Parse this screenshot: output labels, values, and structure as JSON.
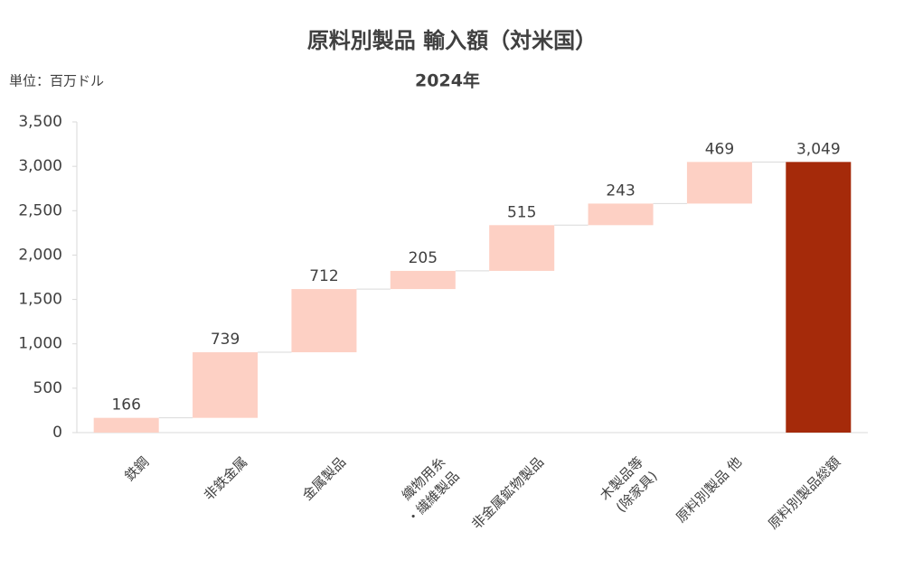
{
  "chart_data": {
    "type": "waterfall",
    "title": "原料別製品 輸入額（対米国）",
    "subtitle": "2024年",
    "unit_note": "単位：百万ドル",
    "categories": [
      "鉄鋼",
      "非鉄金属",
      "金属製品",
      "織物用糸\n・繊維製品",
      "非金属鉱物製品",
      "木製品等\n(除家具)",
      "原料別製品 他",
      "原料別製品総額"
    ],
    "values": [
      166,
      739,
      712,
      205,
      515,
      243,
      469,
      3049
    ],
    "value_labels": [
      "166",
      "739",
      "712",
      "205",
      "515",
      "243",
      "469",
      "3,049"
    ],
    "is_total": [
      false,
      false,
      false,
      false,
      false,
      false,
      false,
      true
    ],
    "color": "#fdd0c4",
    "total_color": "#a52a0a",
    "ylim": [
      0,
      3500
    ],
    "yticks": [
      0,
      500,
      {
        "value": 1000,
        "label": "1,000"
      },
      {
        "value": 1500,
        "label": "1,500"
      },
      {
        "value": 2000,
        "label": "2,000"
      },
      {
        "value": 2500,
        "label": "2,500"
      },
      {
        "value": 3000,
        "label": "3,000"
      },
      {
        "value": 3500,
        "label": "3,500"
      }
    ],
    "grid": false
  }
}
